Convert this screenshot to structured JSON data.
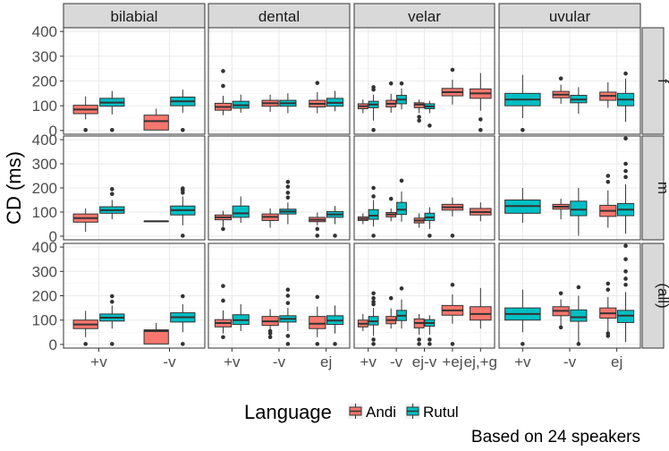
{
  "chart_data": {
    "type": "boxplot",
    "ylabel": "CD (ms)",
    "ylim": [
      -15,
      415
    ],
    "yticks": [
      0,
      100,
      200,
      300,
      400
    ],
    "grid": true,
    "columns": [
      "bilabial",
      "dental",
      "velar",
      "uvular"
    ],
    "rows": [
      "f",
      "m",
      "(all)"
    ],
    "column_categories": {
      "bilabial": [
        "+v",
        "-v"
      ],
      "dental": [
        "+v",
        "-v",
        "ej"
      ],
      "velar": [
        "+v",
        "-v",
        "ej-v",
        "+ej",
        "ej,+g"
      ],
      "uvular": [
        "+v",
        "-v",
        "ej"
      ]
    },
    "legend": {
      "title": "Language",
      "position": "bottom",
      "items": [
        {
          "name": "Andi",
          "color": "#F8766D"
        },
        {
          "name": "Rutul",
          "color": "#00BFC4"
        }
      ]
    },
    "caption": "Based on 24 speakers",
    "panels": [
      {
        "row": "f",
        "col": "bilabial",
        "boxes": [
          {
            "cat": "+v",
            "lang": "Andi",
            "lo": 45,
            "q1": 68,
            "med": 85,
            "q3": 102,
            "hi": 138,
            "out": [
              2
            ]
          },
          {
            "cat": "+v",
            "lang": "Rutul",
            "lo": 65,
            "q1": 98,
            "med": 113,
            "q3": 130,
            "hi": 160,
            "out": [
              2
            ]
          },
          {
            "cat": "-v",
            "lang": "Andi",
            "lo": 2,
            "q1": 2,
            "med": 38,
            "q3": 62,
            "hi": 88,
            "out": []
          },
          {
            "cat": "-v",
            "lang": "Rutul",
            "lo": 72,
            "q1": 100,
            "med": 118,
            "q3": 135,
            "hi": 165,
            "out": [
              2
            ]
          }
        ]
      },
      {
        "row": "f",
        "col": "dental",
        "boxes": [
          {
            "cat": "+v",
            "lang": "Andi",
            "lo": 62,
            "q1": 82,
            "med": 95,
            "q3": 110,
            "hi": 140,
            "out": [
              240,
              180
            ]
          },
          {
            "cat": "+v",
            "lang": "Rutul",
            "lo": 72,
            "q1": 90,
            "med": 102,
            "q3": 118,
            "hi": 145,
            "out": []
          },
          {
            "cat": "-v",
            "lang": "Andi",
            "lo": 75,
            "q1": 98,
            "med": 110,
            "q3": 122,
            "hi": 145,
            "out": []
          },
          {
            "cat": "-v",
            "lang": "Rutul",
            "lo": 70,
            "q1": 98,
            "med": 110,
            "q3": 122,
            "hi": 150,
            "out": []
          },
          {
            "cat": "ej",
            "lang": "Andi",
            "lo": 70,
            "q1": 95,
            "med": 108,
            "q3": 122,
            "hi": 155,
            "out": [
              192
            ]
          },
          {
            "cat": "ej",
            "lang": "Rutul",
            "lo": 78,
            "q1": 98,
            "med": 112,
            "q3": 130,
            "hi": 160,
            "out": []
          }
        ]
      },
      {
        "row": "f",
        "col": "velar",
        "boxes": [
          {
            "cat": "+v",
            "lang": "Andi",
            "lo": 70,
            "q1": 88,
            "med": 98,
            "q3": 108,
            "hi": 125,
            "out": []
          },
          {
            "cat": "+v",
            "lang": "Rutul",
            "lo": 40,
            "q1": 92,
            "med": 105,
            "q3": 118,
            "hi": 145,
            "out": [
              2,
              165,
              175
            ]
          },
          {
            "cat": "-v",
            "lang": "Andi",
            "lo": 72,
            "q1": 95,
            "med": 108,
            "q3": 122,
            "hi": 148,
            "out": [
              190
            ]
          },
          {
            "cat": "-v",
            "lang": "Rutul",
            "lo": 85,
            "q1": 108,
            "med": 125,
            "q3": 142,
            "hi": 170,
            "out": [
              190
            ]
          },
          {
            "cat": "ej-v",
            "lang": "Andi",
            "lo": 70,
            "q1": 92,
            "med": 105,
            "q3": 112,
            "hi": 125,
            "out": [
              55,
              40
            ]
          },
          {
            "cat": "ej-v",
            "lang": "Rutul",
            "lo": 70,
            "q1": 88,
            "med": 97,
            "q3": 108,
            "hi": 120,
            "out": [
              20
            ]
          },
          {
            "cat": "+ej",
            "lang": "Andi",
            "lo": 105,
            "q1": 140,
            "med": 155,
            "q3": 170,
            "hi": 205,
            "out": [
              245
            ]
          },
          {
            "cat": "ej,+g",
            "lang": "Andi",
            "lo": 80,
            "q1": 130,
            "med": 150,
            "q3": 168,
            "hi": 232,
            "out": [
              45,
              2
            ]
          }
        ]
      },
      {
        "row": "f",
        "col": "uvular",
        "boxes": [
          {
            "cat": "+v",
            "lang": "Rutul",
            "lo": 50,
            "q1": 100,
            "med": 125,
            "q3": 150,
            "hi": 225,
            "out": [
              2
            ]
          },
          {
            "cat": "-v",
            "lang": "Andi",
            "lo": 108,
            "q1": 132,
            "med": 145,
            "q3": 158,
            "hi": 185,
            "out": [
              210
            ]
          },
          {
            "cat": "-v",
            "lang": "Rutul",
            "lo": 68,
            "q1": 112,
            "med": 125,
            "q3": 142,
            "hi": 175,
            "out": []
          },
          {
            "cat": "ej",
            "lang": "Andi",
            "lo": 92,
            "q1": 122,
            "med": 140,
            "q3": 155,
            "hi": 195,
            "out": []
          },
          {
            "cat": "ej",
            "lang": "Rutul",
            "lo": 35,
            "q1": 100,
            "med": 125,
            "q3": 150,
            "hi": 210,
            "out": [
              230
            ]
          }
        ]
      },
      {
        "row": "m",
        "col": "bilabial",
        "boxes": [
          {
            "cat": "+v",
            "lang": "Andi",
            "lo": 18,
            "q1": 58,
            "med": 75,
            "q3": 92,
            "hi": 115,
            "out": []
          },
          {
            "cat": "+v",
            "lang": "Rutul",
            "lo": 70,
            "q1": 95,
            "med": 108,
            "q3": 122,
            "hi": 150,
            "out": [
              175,
              195
            ]
          },
          {
            "cat": "-v",
            "lang": "Andi",
            "lo": 62,
            "q1": 62,
            "med": 62,
            "q3": 62,
            "hi": 62,
            "out": []
          },
          {
            "cat": "-v",
            "lang": "Rutul",
            "lo": 45,
            "q1": 88,
            "med": 108,
            "q3": 125,
            "hi": 165,
            "out": [
              2,
              180,
              190,
              198
            ]
          }
        ]
      },
      {
        "row": "m",
        "col": "dental",
        "boxes": [
          {
            "cat": "+v",
            "lang": "Andi",
            "lo": 40,
            "q1": 68,
            "med": 78,
            "q3": 88,
            "hi": 105,
            "out": [
              30
            ]
          },
          {
            "cat": "+v",
            "lang": "Rutul",
            "lo": 55,
            "q1": 78,
            "med": 95,
            "q3": 125,
            "hi": 165,
            "out": []
          },
          {
            "cat": "-v",
            "lang": "Andi",
            "lo": 35,
            "q1": 65,
            "med": 80,
            "q3": 92,
            "hi": 115,
            "out": []
          },
          {
            "cat": "-v",
            "lang": "Rutul",
            "lo": 50,
            "q1": 92,
            "med": 102,
            "q3": 112,
            "hi": 140,
            "out": [
              160,
              180,
              205,
              225
            ]
          },
          {
            "cat": "ej",
            "lang": "Andi",
            "lo": 45,
            "q1": 60,
            "med": 68,
            "q3": 78,
            "hi": 98,
            "out": [
              30,
              2
            ]
          },
          {
            "cat": "ej",
            "lang": "Rutul",
            "lo": 50,
            "q1": 78,
            "med": 90,
            "q3": 102,
            "hi": 125,
            "out": [
              2
            ]
          }
        ]
      },
      {
        "row": "m",
        "col": "velar",
        "boxes": [
          {
            "cat": "+v",
            "lang": "Andi",
            "lo": 50,
            "q1": 65,
            "med": 72,
            "q3": 80,
            "hi": 95,
            "out": []
          },
          {
            "cat": "+v",
            "lang": "Rutul",
            "lo": 40,
            "q1": 70,
            "med": 85,
            "q3": 110,
            "hi": 150,
            "out": [
              2,
              165,
              200
            ]
          },
          {
            "cat": "-v",
            "lang": "Andi",
            "lo": 62,
            "q1": 80,
            "med": 90,
            "q3": 98,
            "hi": 115,
            "out": [
              155
            ]
          },
          {
            "cat": "-v",
            "lang": "Rutul",
            "lo": 60,
            "q1": 90,
            "med": 110,
            "q3": 140,
            "hi": 185,
            "out": [
              230
            ]
          },
          {
            "cat": "ej-v",
            "lang": "Andi",
            "lo": 35,
            "q1": 55,
            "med": 65,
            "q3": 75,
            "hi": 95,
            "out": []
          },
          {
            "cat": "ej-v",
            "lang": "Rutul",
            "lo": 30,
            "q1": 65,
            "med": 78,
            "q3": 95,
            "hi": 120,
            "out": [
              2
            ]
          },
          {
            "cat": "+ej",
            "lang": "Andi",
            "lo": 82,
            "q1": 108,
            "med": 120,
            "q3": 132,
            "hi": 160,
            "out": [
              2
            ]
          },
          {
            "cat": "ej,+g",
            "lang": "Andi",
            "lo": 62,
            "q1": 88,
            "med": 100,
            "q3": 115,
            "hi": 140,
            "out": []
          }
        ]
      },
      {
        "row": "m",
        "col": "uvular",
        "boxes": [
          {
            "cat": "+v",
            "lang": "Rutul",
            "lo": 55,
            "q1": 95,
            "med": 125,
            "q3": 150,
            "hi": 200,
            "out": []
          },
          {
            "cat": "-v",
            "lang": "Andi",
            "lo": 70,
            "q1": 112,
            "med": 122,
            "q3": 132,
            "hi": 155,
            "out": []
          },
          {
            "cat": "-v",
            "lang": "Rutul",
            "lo": 2,
            "q1": 85,
            "med": 110,
            "q3": 145,
            "hi": 200,
            "out": []
          },
          {
            "cat": "ej",
            "lang": "Andi",
            "lo": 35,
            "q1": 82,
            "med": 105,
            "q3": 128,
            "hi": 190,
            "out": [
              225,
              250
            ]
          },
          {
            "cat": "ej",
            "lang": "Rutul",
            "lo": 10,
            "q1": 85,
            "med": 110,
            "q3": 135,
            "hi": 215,
            "out": [
              245,
              270,
              300,
              405
            ]
          }
        ]
      },
      {
        "row": "(all)",
        "col": "bilabial",
        "boxes": [
          {
            "cat": "+v",
            "lang": "Andi",
            "lo": 30,
            "q1": 65,
            "med": 82,
            "q3": 100,
            "hi": 138,
            "out": [
              2
            ]
          },
          {
            "cat": "+v",
            "lang": "Rutul",
            "lo": 65,
            "q1": 96,
            "med": 110,
            "q3": 125,
            "hi": 160,
            "out": [
              2,
              175,
              198
            ]
          },
          {
            "cat": "-v",
            "lang": "Andi",
            "lo": 2,
            "q1": 2,
            "med": 55,
            "q3": 60,
            "hi": 88,
            "out": []
          },
          {
            "cat": "-v",
            "lang": "Rutul",
            "lo": 50,
            "q1": 92,
            "med": 112,
            "q3": 130,
            "hi": 165,
            "out": [
              2,
              198
            ]
          }
        ]
      },
      {
        "row": "(all)",
        "col": "dental",
        "boxes": [
          {
            "cat": "+v",
            "lang": "Andi",
            "lo": 45,
            "q1": 72,
            "med": 88,
            "q3": 102,
            "hi": 140,
            "out": [
              30,
              180,
              240
            ]
          },
          {
            "cat": "+v",
            "lang": "Rutul",
            "lo": 55,
            "q1": 82,
            "med": 100,
            "q3": 122,
            "hi": 165,
            "out": []
          },
          {
            "cat": "-v",
            "lang": "Andi",
            "lo": 55,
            "q1": 78,
            "med": 95,
            "q3": 115,
            "hi": 145,
            "out": [
              30,
              45,
              55
            ]
          },
          {
            "cat": "-v",
            "lang": "Rutul",
            "lo": 55,
            "q1": 92,
            "med": 105,
            "q3": 118,
            "hi": 150,
            "out": [
              2,
              35,
              170,
              200,
              225
            ]
          },
          {
            "cat": "ej",
            "lang": "Andi",
            "lo": 30,
            "q1": 65,
            "med": 85,
            "q3": 115,
            "hi": 155,
            "out": [
              2,
              195
            ]
          },
          {
            "cat": "ej",
            "lang": "Rutul",
            "lo": 45,
            "q1": 82,
            "med": 98,
            "q3": 118,
            "hi": 160,
            "out": [
              2
            ]
          }
        ]
      },
      {
        "row": "(all)",
        "col": "velar",
        "boxes": [
          {
            "cat": "+v",
            "lang": "Andi",
            "lo": 55,
            "q1": 72,
            "med": 85,
            "q3": 100,
            "hi": 125,
            "out": []
          },
          {
            "cat": "+v",
            "lang": "Rutul",
            "lo": 35,
            "q1": 80,
            "med": 95,
            "q3": 115,
            "hi": 150,
            "out": [
              2,
              20,
              165,
              175,
              190,
              210
            ]
          },
          {
            "cat": "-v",
            "lang": "Andi",
            "lo": 65,
            "q1": 85,
            "med": 100,
            "q3": 115,
            "hi": 148,
            "out": [
              190
            ]
          },
          {
            "cat": "-v",
            "lang": "Rutul",
            "lo": 65,
            "q1": 98,
            "med": 118,
            "q3": 140,
            "hi": 185,
            "out": [
              230
            ]
          },
          {
            "cat": "ej-v",
            "lang": "Andi",
            "lo": 40,
            "q1": 68,
            "med": 88,
            "q3": 105,
            "hi": 125,
            "out": [
              2,
              20
            ]
          },
          {
            "cat": "ej-v",
            "lang": "Rutul",
            "lo": 40,
            "q1": 75,
            "med": 88,
            "q3": 102,
            "hi": 120,
            "out": [
              2,
              20
            ]
          },
          {
            "cat": "+ej",
            "lang": "Andi",
            "lo": 85,
            "q1": 120,
            "med": 140,
            "q3": 160,
            "hi": 205,
            "out": [
              2,
              245
            ]
          },
          {
            "cat": "ej,+g",
            "lang": "Andi",
            "lo": 65,
            "q1": 100,
            "med": 125,
            "q3": 155,
            "hi": 232,
            "out": []
          }
        ]
      },
      {
        "row": "(all)",
        "col": "uvular",
        "boxes": [
          {
            "cat": "+v",
            "lang": "Rutul",
            "lo": 50,
            "q1": 100,
            "med": 125,
            "q3": 150,
            "hi": 225,
            "out": [
              2
            ]
          },
          {
            "cat": "-v",
            "lang": "Andi",
            "lo": 70,
            "q1": 118,
            "med": 138,
            "q3": 155,
            "hi": 185,
            "out": [
              70,
              210
            ]
          },
          {
            "cat": "-v",
            "lang": "Rutul",
            "lo": 2,
            "q1": 95,
            "med": 112,
            "q3": 142,
            "hi": 200,
            "out": [
              2,
              235
            ]
          },
          {
            "cat": "ej",
            "lang": "Andi",
            "lo": 50,
            "q1": 108,
            "med": 128,
            "q3": 150,
            "hi": 195,
            "out": [
              35,
              45,
              225,
              250
            ]
          },
          {
            "cat": "ej",
            "lang": "Rutul",
            "lo": 10,
            "q1": 90,
            "med": 118,
            "q3": 140,
            "hi": 215,
            "out": [
              245,
              270,
              300,
              350,
              405
            ]
          }
        ]
      }
    ]
  }
}
